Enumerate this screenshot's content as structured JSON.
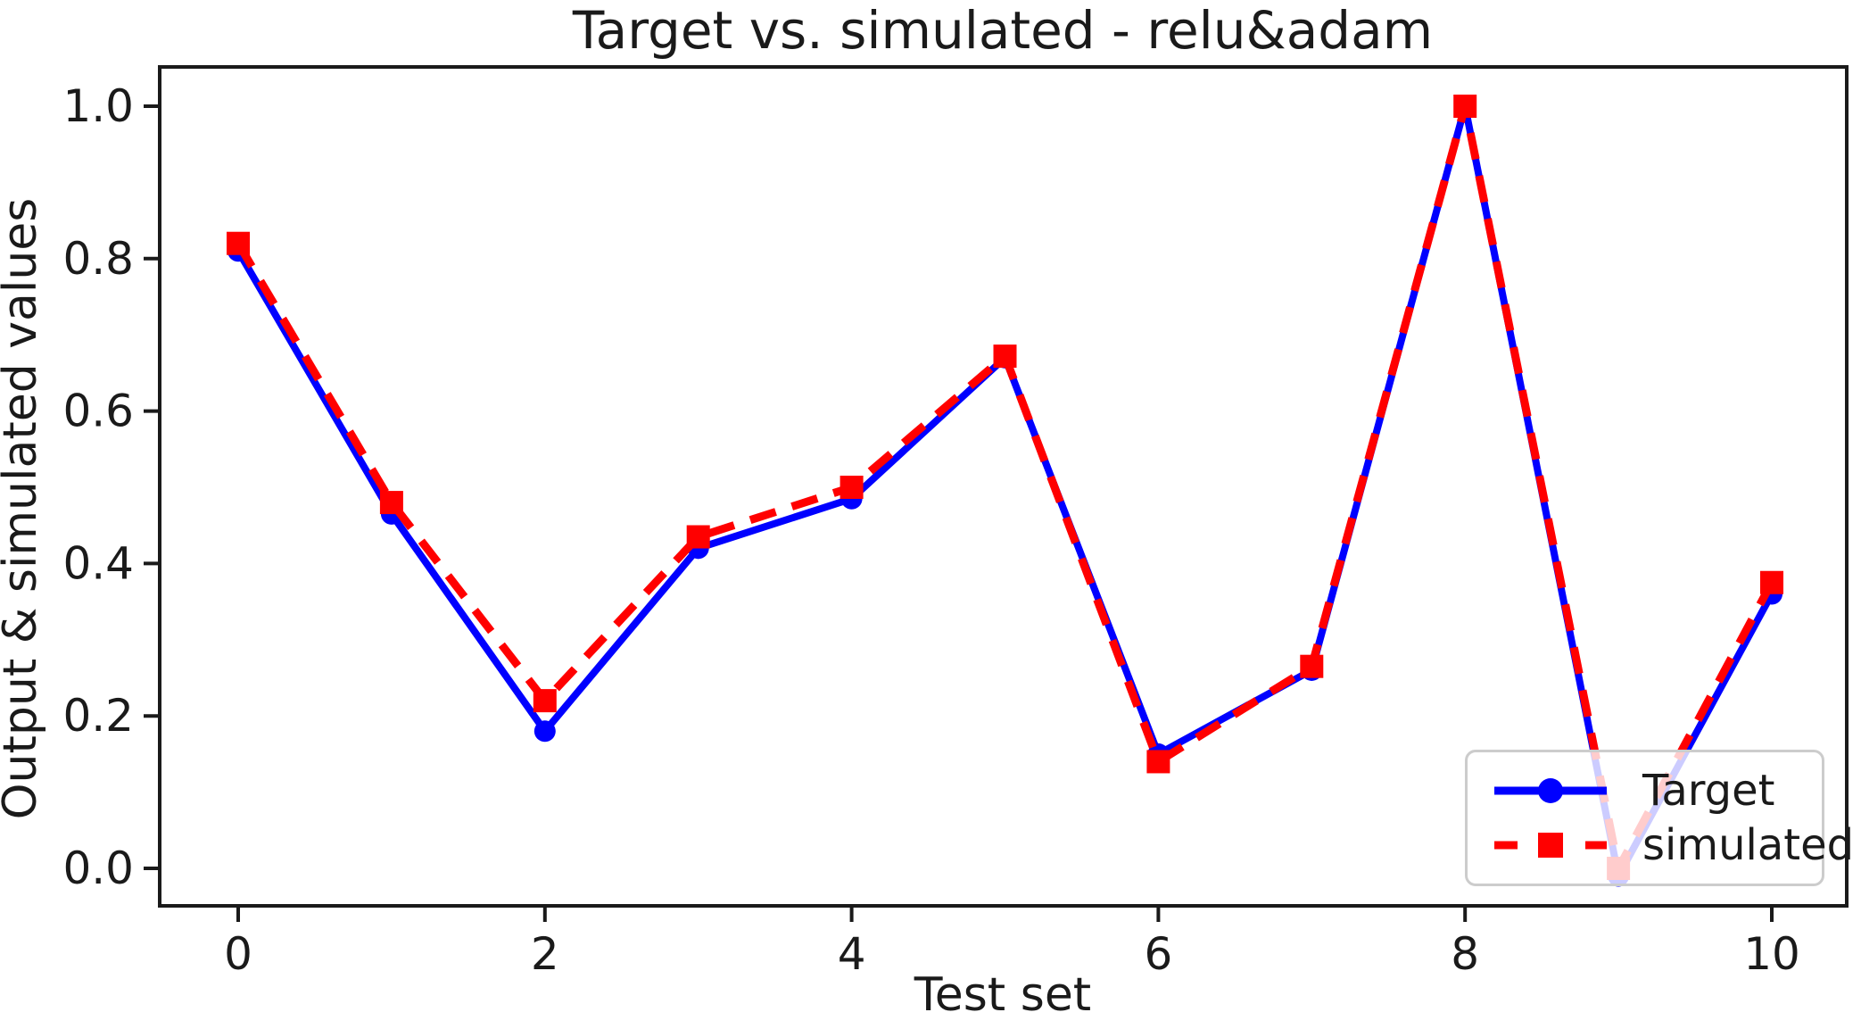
{
  "title": "Target vs. simulated - relu&adam",
  "chart_data": {
    "type": "line",
    "title": "Target vs. simulated - relu&adam",
    "xlabel": "Test set",
    "ylabel": "Output & simulated values",
    "x": [
      0,
      1,
      2,
      3,
      4,
      5,
      6,
      7,
      8,
      9,
      10
    ],
    "series": [
      {
        "name": "Target",
        "color": "#0000ff",
        "line_style": "solid",
        "marker": "circle",
        "values": [
          0.81,
          0.465,
          0.18,
          0.42,
          0.485,
          0.67,
          0.15,
          0.26,
          1.0,
          -0.01,
          0.36
        ]
      },
      {
        "name": "simulated",
        "color": "#ff0000",
        "line_style": "dashed",
        "marker": "square",
        "values": [
          0.82,
          0.48,
          0.22,
          0.435,
          0.5,
          0.672,
          0.14,
          0.265,
          1.0,
          0.0,
          0.375
        ]
      }
    ],
    "xticks": [
      "0",
      "2",
      "4",
      "6",
      "8",
      "10"
    ],
    "yticks": [
      "0.0",
      "0.2",
      "0.4",
      "0.6",
      "0.8",
      "1.0"
    ],
    "xlim": [
      -0.5,
      10.5
    ],
    "ylim": [
      -0.06,
      1.05
    ],
    "grid": false,
    "legend_position": "lower right"
  },
  "legend": {
    "items": [
      {
        "label": "Target"
      },
      {
        "label": "simulated"
      }
    ]
  },
  "colors": {
    "target_line": "#0000ff",
    "simulated_line": "#ff0000",
    "text": "#1a1a1a",
    "spine": "#1a1a1a",
    "legend_border": "#cccccc",
    "background": "#ffffff"
  }
}
